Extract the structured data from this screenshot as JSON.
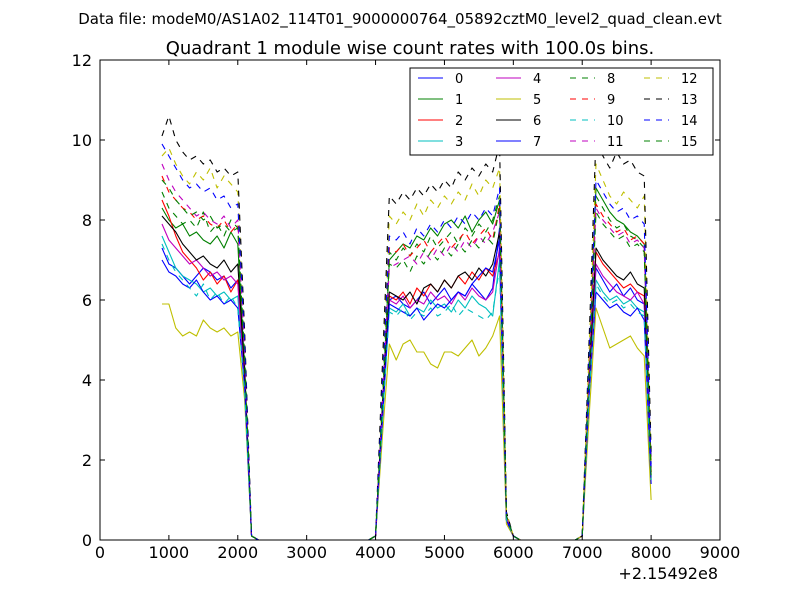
{
  "chart_data": {
    "type": "line",
    "suptitle": "Data file: modeM0/AS1A02_114T01_9000000764_05892cztM0_level2_quad_clean.evt",
    "title": "Quadrant 1 module wise count rates with 100.0s bins.",
    "xlabel": "",
    "ylabel": "",
    "x_offset_label": "+2.15492e8",
    "xlim": [
      0,
      9000
    ],
    "ylim": [
      0,
      12
    ],
    "xticks": [
      0,
      1000,
      2000,
      3000,
      4000,
      5000,
      6000,
      7000,
      8000,
      9000
    ],
    "yticks": [
      0,
      2,
      4,
      6,
      8,
      10,
      12
    ],
    "legend_position": "top-right",
    "x": [
      900,
      1000,
      1100,
      1200,
      1300,
      1400,
      1500,
      1600,
      1700,
      1800,
      1900,
      2000,
      2100,
      2200,
      2300,
      2400,
      2500,
      2600,
      2700,
      2800,
      2900,
      3000,
      3100,
      3200,
      3300,
      3400,
      3500,
      3600,
      3700,
      3800,
      3900,
      4000,
      4100,
      4200,
      4300,
      4400,
      4500,
      4600,
      4700,
      4800,
      4900,
      5000,
      5100,
      5200,
      5300,
      5400,
      5500,
      5600,
      5700,
      5800,
      5900,
      6000,
      6100,
      6200,
      6300,
      6400,
      6500,
      6600,
      6700,
      6800,
      6900,
      7000,
      7100,
      7200,
      7300,
      7400,
      7500,
      7600,
      7700,
      7800,
      7900,
      8000
    ],
    "series": [
      {
        "name": "0",
        "color": "#0000ff",
        "dash": "solid",
        "values": [
          7.3,
          6.9,
          6.8,
          6.6,
          6.4,
          6.6,
          6.8,
          6.7,
          6.5,
          6.6,
          6.3,
          6.5,
          4.1,
          0.1,
          0,
          0,
          0,
          0,
          0,
          0,
          0,
          0,
          0,
          0,
          0,
          0,
          0,
          0,
          0,
          0,
          0,
          0.1,
          3.2,
          6.0,
          6.1,
          5.9,
          5.8,
          6.0,
          6.2,
          5.9,
          6.1,
          6.3,
          6.0,
          6.2,
          6.1,
          6.4,
          6.2,
          6.0,
          6.3,
          7.8,
          0.6,
          0.1,
          0,
          0,
          0,
          0,
          0,
          0,
          0,
          0,
          0,
          0.1,
          3.9,
          6.8,
          6.5,
          6.2,
          6.4,
          6.1,
          6.3,
          6.0,
          5.9,
          1.9
        ]
      },
      {
        "name": "1",
        "color": "#008000",
        "dash": "solid",
        "values": [
          8.3,
          8.0,
          7.8,
          7.9,
          7.6,
          7.7,
          7.5,
          7.4,
          7.6,
          7.3,
          7.7,
          7.4,
          4.3,
          0.1,
          0,
          0,
          0,
          0,
          0,
          0,
          0,
          0,
          0,
          0,
          0,
          0,
          0,
          0,
          0,
          0,
          0,
          0.1,
          3.4,
          7.0,
          7.2,
          7.4,
          7.3,
          7.6,
          7.5,
          7.8,
          7.6,
          7.9,
          8.0,
          7.8,
          8.1,
          7.7,
          8.0,
          8.2,
          7.9,
          8.5,
          0.6,
          0.1,
          0,
          0,
          0,
          0,
          0,
          0,
          0,
          0,
          0,
          0.1,
          4.2,
          8.8,
          8.5,
          8.2,
          8.0,
          7.9,
          7.7,
          7.6,
          7.4,
          1.5
        ]
      },
      {
        "name": "2",
        "color": "#ff0000",
        "dash": "solid",
        "values": [
          8.5,
          8.1,
          7.6,
          7.2,
          7.0,
          6.8,
          6.5,
          6.7,
          6.4,
          6.6,
          6.2,
          6.5,
          4.0,
          0.1,
          0,
          0,
          0,
          0,
          0,
          0,
          0,
          0,
          0,
          0,
          0,
          0,
          0,
          0,
          0,
          0,
          0,
          0.1,
          3.1,
          6.1,
          6.0,
          6.2,
          5.9,
          6.3,
          6.1,
          6.4,
          6.2,
          6.5,
          6.3,
          6.6,
          6.4,
          6.7,
          6.5,
          6.8,
          6.6,
          7.2,
          0.5,
          0.1,
          0,
          0,
          0,
          0,
          0,
          0,
          0,
          0,
          0,
          0.1,
          3.8,
          7.2,
          6.9,
          6.7,
          6.5,
          6.3,
          6.4,
          6.2,
          6.1,
          1.7
        ]
      },
      {
        "name": "3",
        "color": "#00bfbf",
        "dash": "solid",
        "values": [
          7.6,
          7.2,
          6.8,
          6.6,
          6.5,
          6.4,
          6.2,
          6.3,
          6.1,
          6.2,
          6.0,
          6.1,
          3.9,
          0.1,
          0,
          0,
          0,
          0,
          0,
          0,
          0,
          0,
          0,
          0,
          0,
          0,
          0,
          0,
          0,
          0,
          0,
          0.1,
          3.0,
          5.8,
          5.7,
          5.9,
          5.6,
          5.8,
          5.7,
          6.0,
          5.8,
          5.9,
          5.7,
          6.0,
          5.8,
          6.1,
          5.9,
          5.8,
          5.6,
          7.0,
          0.5,
          0.1,
          0,
          0,
          0,
          0,
          0,
          0,
          0,
          0,
          0,
          0.1,
          3.7,
          6.5,
          6.2,
          6.0,
          6.1,
          5.9,
          6.0,
          5.8,
          5.7,
          1.6
        ]
      },
      {
        "name": "4",
        "color": "#bf00bf",
        "dash": "solid",
        "values": [
          7.9,
          7.5,
          7.3,
          7.1,
          6.9,
          7.0,
          6.8,
          6.6,
          6.7,
          6.5,
          6.6,
          6.4,
          4.0,
          0.1,
          0,
          0,
          0,
          0,
          0,
          0,
          0,
          0,
          0,
          0,
          0,
          0,
          0,
          0,
          0,
          0,
          0,
          0.1,
          3.2,
          6.0,
          5.9,
          6.1,
          5.8,
          6.0,
          5.9,
          6.2,
          6.0,
          6.1,
          5.9,
          6.2,
          6.0,
          6.3,
          6.1,
          6.0,
          6.2,
          7.3,
          0.5,
          0.1,
          0,
          0,
          0,
          0,
          0,
          0,
          0,
          0,
          0,
          0.1,
          3.8,
          6.9,
          6.6,
          6.4,
          6.2,
          6.1,
          6.0,
          6.2,
          5.9,
          1.8
        ]
      },
      {
        "name": "5",
        "color": "#bfbf00",
        "dash": "solid",
        "values": [
          5.9,
          5.9,
          5.3,
          5.1,
          5.2,
          5.1,
          5.5,
          5.3,
          5.2,
          5.3,
          5.1,
          5.2,
          3.5,
          0.1,
          0,
          0,
          0,
          0,
          0,
          0,
          0,
          0,
          0,
          0,
          0,
          0,
          0,
          0,
          0,
          0,
          0,
          0.1,
          2.6,
          4.9,
          4.5,
          4.9,
          5.0,
          4.7,
          4.7,
          4.4,
          4.3,
          4.7,
          4.7,
          4.6,
          4.8,
          5.0,
          4.6,
          4.8,
          5.1,
          5.6,
          0.4,
          0.1,
          0,
          0,
          0,
          0,
          0,
          0,
          0,
          0,
          0,
          0.1,
          3.1,
          5.8,
          5.3,
          4.8,
          4.9,
          5.0,
          5.1,
          4.8,
          4.6,
          1.0
        ]
      },
      {
        "name": "6",
        "color": "#000000",
        "dash": "solid",
        "values": [
          8.1,
          7.9,
          7.7,
          7.4,
          7.2,
          7.0,
          7.1,
          6.9,
          6.8,
          7.0,
          6.7,
          6.9,
          4.2,
          0.1,
          0,
          0,
          0,
          0,
          0,
          0,
          0,
          0,
          0,
          0,
          0,
          0,
          0,
          0,
          0,
          0,
          0,
          0.1,
          3.3,
          6.2,
          6.1,
          6.0,
          6.2,
          5.9,
          6.3,
          6.4,
          6.2,
          6.5,
          6.3,
          6.6,
          6.7,
          6.5,
          6.8,
          6.6,
          6.9,
          7.7,
          0.5,
          0.1,
          0,
          0,
          0,
          0,
          0,
          0,
          0,
          0,
          0,
          0.1,
          4.0,
          7.3,
          7.0,
          6.8,
          6.6,
          6.5,
          6.7,
          6.4,
          6.3,
          2.0
        ]
      },
      {
        "name": "7",
        "color": "#0000ff",
        "dash": "solid",
        "values": [
          7.0,
          6.7,
          6.6,
          6.4,
          6.3,
          6.5,
          6.2,
          6.0,
          6.1,
          5.9,
          6.0,
          5.8,
          3.8,
          0.1,
          0,
          0,
          0,
          0,
          0,
          0,
          0,
          0,
          0,
          0,
          0,
          0,
          0,
          0,
          0,
          0,
          0,
          0.1,
          3.0,
          5.9,
          5.8,
          5.7,
          5.6,
          5.8,
          5.5,
          5.7,
          5.9,
          5.8,
          6.0,
          6.2,
          6.1,
          6.4,
          6.6,
          6.8,
          6.7,
          7.5,
          0.5,
          0.1,
          0,
          0,
          0,
          0,
          0,
          0,
          0,
          0,
          0,
          0.1,
          3.6,
          6.2,
          6.0,
          5.8,
          5.9,
          5.7,
          5.6,
          5.8,
          5.5,
          1.4
        ]
      },
      {
        "name": "8",
        "color": "#008000",
        "dash": "dashed",
        "values": [
          8.7,
          8.3,
          8.1,
          7.9,
          8.0,
          7.8,
          8.2,
          7.7,
          7.9,
          7.6,
          8.0,
          7.8,
          4.6,
          0.1,
          0,
          0,
          0,
          0,
          0,
          0,
          0,
          0,
          0,
          0,
          0,
          0,
          0,
          0,
          0,
          0,
          0,
          0.1,
          3.5,
          7.2,
          7.0,
          7.3,
          7.1,
          7.4,
          7.2,
          7.6,
          7.3,
          7.5,
          7.7,
          7.4,
          7.8,
          7.6,
          7.9,
          7.7,
          8.0,
          8.6,
          0.6,
          0.1,
          0,
          0,
          0,
          0,
          0,
          0,
          0,
          0,
          0,
          0.1,
          4.3,
          8.6,
          8.3,
          8.0,
          7.8,
          7.9,
          7.6,
          7.5,
          7.3,
          1.6
        ]
      },
      {
        "name": "9",
        "color": "#ff0000",
        "dash": "dashed",
        "values": [
          9.1,
          8.7,
          8.5,
          8.3,
          8.2,
          8.0,
          8.1,
          7.9,
          7.8,
          8.0,
          7.7,
          7.9,
          4.6,
          0.1,
          0,
          0,
          0,
          0,
          0,
          0,
          0,
          0,
          0,
          0,
          0,
          0,
          0,
          0,
          0,
          0,
          0,
          0.1,
          3.6,
          7.3,
          7.2,
          7.4,
          7.1,
          7.3,
          7.5,
          7.2,
          7.4,
          7.6,
          7.3,
          7.5,
          7.7,
          7.4,
          7.6,
          7.8,
          7.5,
          8.4,
          0.6,
          0.1,
          0,
          0,
          0,
          0,
          0,
          0,
          0,
          0,
          0,
          0.1,
          4.3,
          8.4,
          8.1,
          7.9,
          7.7,
          7.8,
          7.5,
          7.6,
          7.4,
          1.7
        ]
      },
      {
        "name": "10",
        "color": "#00bfbf",
        "dash": "dashed",
        "values": [
          7.4,
          7.0,
          6.7,
          6.5,
          6.3,
          6.1,
          6.4,
          6.0,
          6.2,
          5.9,
          6.1,
          5.8,
          3.7,
          0.1,
          0,
          0,
          0,
          0,
          0,
          0,
          0,
          0,
          0,
          0,
          0,
          0,
          0,
          0,
          0,
          0,
          0,
          0.1,
          3.0,
          5.7,
          5.6,
          5.8,
          5.5,
          5.7,
          5.6,
          5.8,
          5.6,
          5.7,
          5.9,
          5.6,
          5.8,
          5.7,
          5.6,
          5.5,
          5.7,
          6.8,
          0.5,
          0.1,
          0,
          0,
          0,
          0,
          0,
          0,
          0,
          0,
          0,
          0.1,
          3.6,
          6.4,
          6.1,
          5.9,
          6.0,
          5.8,
          5.9,
          5.7,
          5.6,
          1.5
        ]
      },
      {
        "name": "11",
        "color": "#bf00bf",
        "dash": "dashed",
        "values": [
          9.4,
          9.0,
          8.7,
          8.5,
          8.3,
          8.1,
          8.2,
          8.0,
          7.9,
          8.1,
          7.8,
          8.0,
          4.7,
          0.1,
          0,
          0,
          0,
          0,
          0,
          0,
          0,
          0,
          0,
          0,
          0,
          0,
          0,
          0,
          0,
          0,
          0,
          0.1,
          3.5,
          6.8,
          6.9,
          7.0,
          7.1,
          6.9,
          7.2,
          7.0,
          7.3,
          7.1,
          7.4,
          7.2,
          7.5,
          7.3,
          7.6,
          7.4,
          7.7,
          8.2,
          0.6,
          0.1,
          0,
          0,
          0,
          0,
          0,
          0,
          0,
          0,
          0,
          0.1,
          4.2,
          8.3,
          8.0,
          7.8,
          7.6,
          7.7,
          7.4,
          7.5,
          7.3,
          1.7
        ]
      },
      {
        "name": "12",
        "color": "#bfbf00",
        "dash": "dashed",
        "values": [
          9.6,
          9.8,
          9.4,
          9.1,
          8.9,
          9.2,
          9.0,
          9.3,
          8.8,
          9.1,
          8.9,
          8.7,
          5.0,
          0.1,
          0,
          0,
          0,
          0,
          0,
          0,
          0,
          0,
          0,
          0,
          0,
          0,
          0,
          0,
          0,
          0,
          0,
          0.1,
          4.0,
          8.1,
          7.9,
          8.2,
          8.0,
          8.4,
          8.1,
          8.5,
          8.3,
          8.6,
          8.4,
          8.7,
          8.5,
          8.9,
          8.6,
          9.0,
          8.8,
          9.3,
          0.7,
          0.1,
          0,
          0,
          0,
          0,
          0,
          0,
          0,
          0,
          0,
          0.1,
          4.7,
          9.4,
          9.0,
          8.6,
          8.4,
          8.7,
          8.5,
          8.3,
          8.6,
          1.9
        ]
      },
      {
        "name": "13",
        "color": "#000000",
        "dash": "dashed",
        "values": [
          10.1,
          10.6,
          10.0,
          9.7,
          9.5,
          9.6,
          9.4,
          9.5,
          9.2,
          9.3,
          9.1,
          9.2,
          5.2,
          0.1,
          0,
          0,
          0,
          0,
          0,
          0,
          0,
          0,
          0,
          0,
          0,
          0,
          0,
          0,
          0,
          0,
          0,
          0.1,
          4.4,
          8.6,
          8.4,
          8.7,
          8.5,
          8.8,
          8.6,
          8.9,
          8.7,
          9.0,
          8.8,
          9.2,
          9.0,
          9.3,
          9.1,
          9.4,
          9.2,
          9.9,
          0.7,
          0.1,
          0,
          0,
          0,
          0,
          0,
          0,
          0,
          0,
          0,
          0.1,
          5.0,
          10.1,
          9.6,
          9.3,
          9.7,
          9.4,
          9.5,
          9.2,
          9.1,
          2.2
        ]
      },
      {
        "name": "14",
        "color": "#0000ff",
        "dash": "dashed",
        "values": [
          9.9,
          9.6,
          9.3,
          9.0,
          8.8,
          8.9,
          8.7,
          8.8,
          8.5,
          8.6,
          8.3,
          8.4,
          4.9,
          0.1,
          0,
          0,
          0,
          0,
          0,
          0,
          0,
          0,
          0,
          0,
          0,
          0,
          0,
          0,
          0,
          0,
          0,
          0.1,
          3.8,
          7.6,
          7.5,
          7.7,
          7.4,
          7.8,
          7.6,
          7.9,
          7.7,
          8.0,
          7.8,
          8.1,
          7.9,
          8.2,
          8.0,
          8.3,
          8.1,
          8.8,
          0.6,
          0.1,
          0,
          0,
          0,
          0,
          0,
          0,
          0,
          0,
          0,
          0.1,
          4.5,
          9.0,
          8.7,
          8.4,
          8.2,
          8.3,
          8.0,
          8.1,
          7.9,
          1.8
        ]
      },
      {
        "name": "15",
        "color": "#008000",
        "dash": "dashed",
        "values": [
          9.0,
          8.8,
          8.5,
          8.3,
          8.1,
          8.2,
          8.0,
          8.1,
          7.8,
          7.9,
          7.7,
          7.8,
          4.5,
          0.1,
          0,
          0,
          0,
          0,
          0,
          0,
          0,
          0,
          0,
          0,
          0,
          0,
          0,
          0,
          0,
          0,
          0,
          0.1,
          3.4,
          6.9,
          6.8,
          7.0,
          6.7,
          7.1,
          6.9,
          7.2,
          7.0,
          7.3,
          7.1,
          7.4,
          7.2,
          7.5,
          7.3,
          7.6,
          7.4,
          8.3,
          0.6,
          0.1,
          0,
          0,
          0,
          0,
          0,
          0,
          0,
          0,
          0,
          0.1,
          4.1,
          8.2,
          7.9,
          7.7,
          7.5,
          7.6,
          7.3,
          7.4,
          7.2,
          1.6
        ]
      }
    ]
  }
}
